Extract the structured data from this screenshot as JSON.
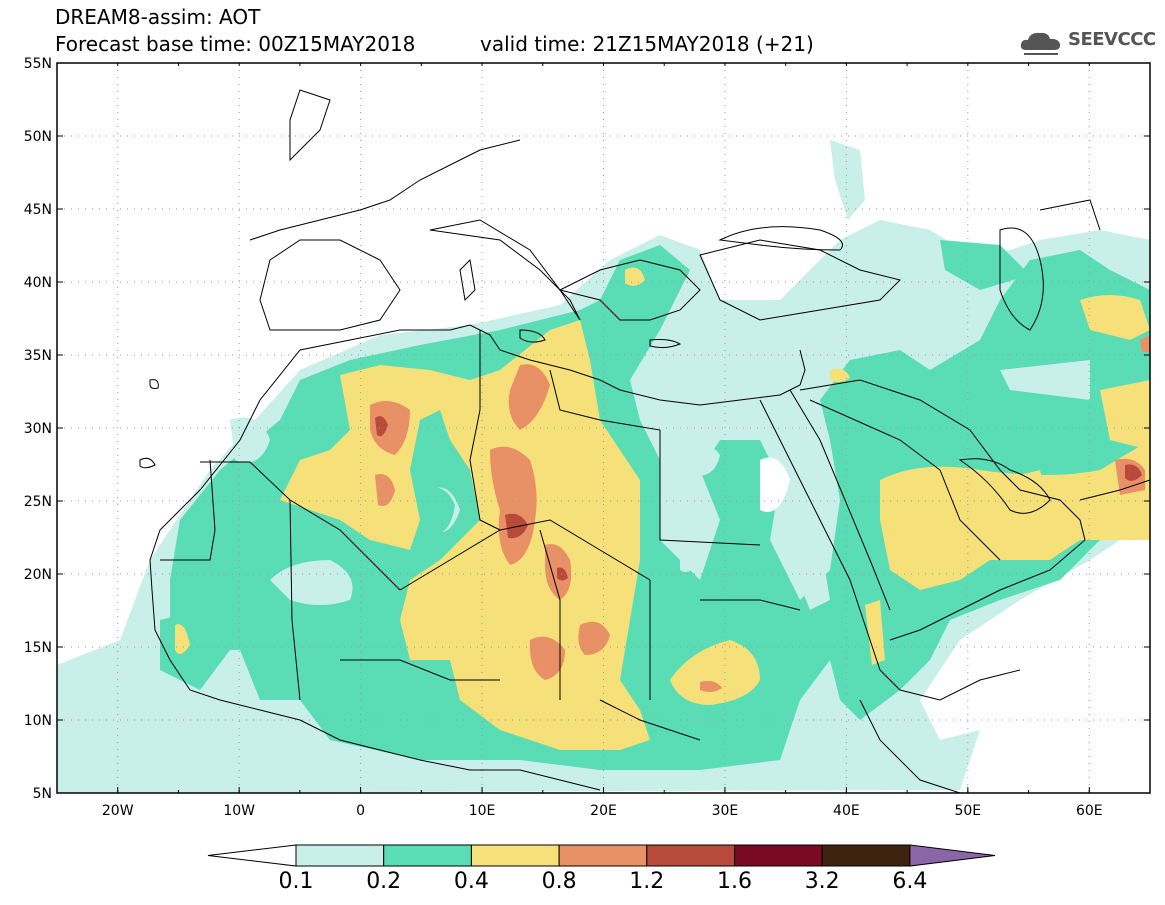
{
  "header": {
    "line1": "DREAM8-assim: AOT",
    "line2": "Forecast base time: 00Z15MAY2018",
    "valid": "valid time: 21Z15MAY2018 (+21)",
    "logo_text": "SEEVCCC"
  },
  "map": {
    "lon_range": [
      -25,
      65
    ],
    "lat_range": [
      5,
      55
    ],
    "x_ticks": [
      "20W",
      "10W",
      "0",
      "10E",
      "20E",
      "30E",
      "40E",
      "50E",
      "60E"
    ],
    "y_ticks": [
      "55N",
      "50N",
      "45N",
      "40N",
      "35N",
      "30N",
      "25N",
      "20N",
      "15N",
      "10N",
      "5N"
    ],
    "grid": "dotted"
  },
  "colorbar": {
    "labels": [
      "0.1",
      "0.2",
      "0.4",
      "0.8",
      "1.2",
      "1.6",
      "3.2",
      "6.4"
    ],
    "colors": [
      "#c8f0e8",
      "#5adcb4",
      "#f5e07a",
      "#e89066",
      "#b84a3c",
      "#7a0a24",
      "#3e2410",
      "#8a66a8"
    ]
  }
}
